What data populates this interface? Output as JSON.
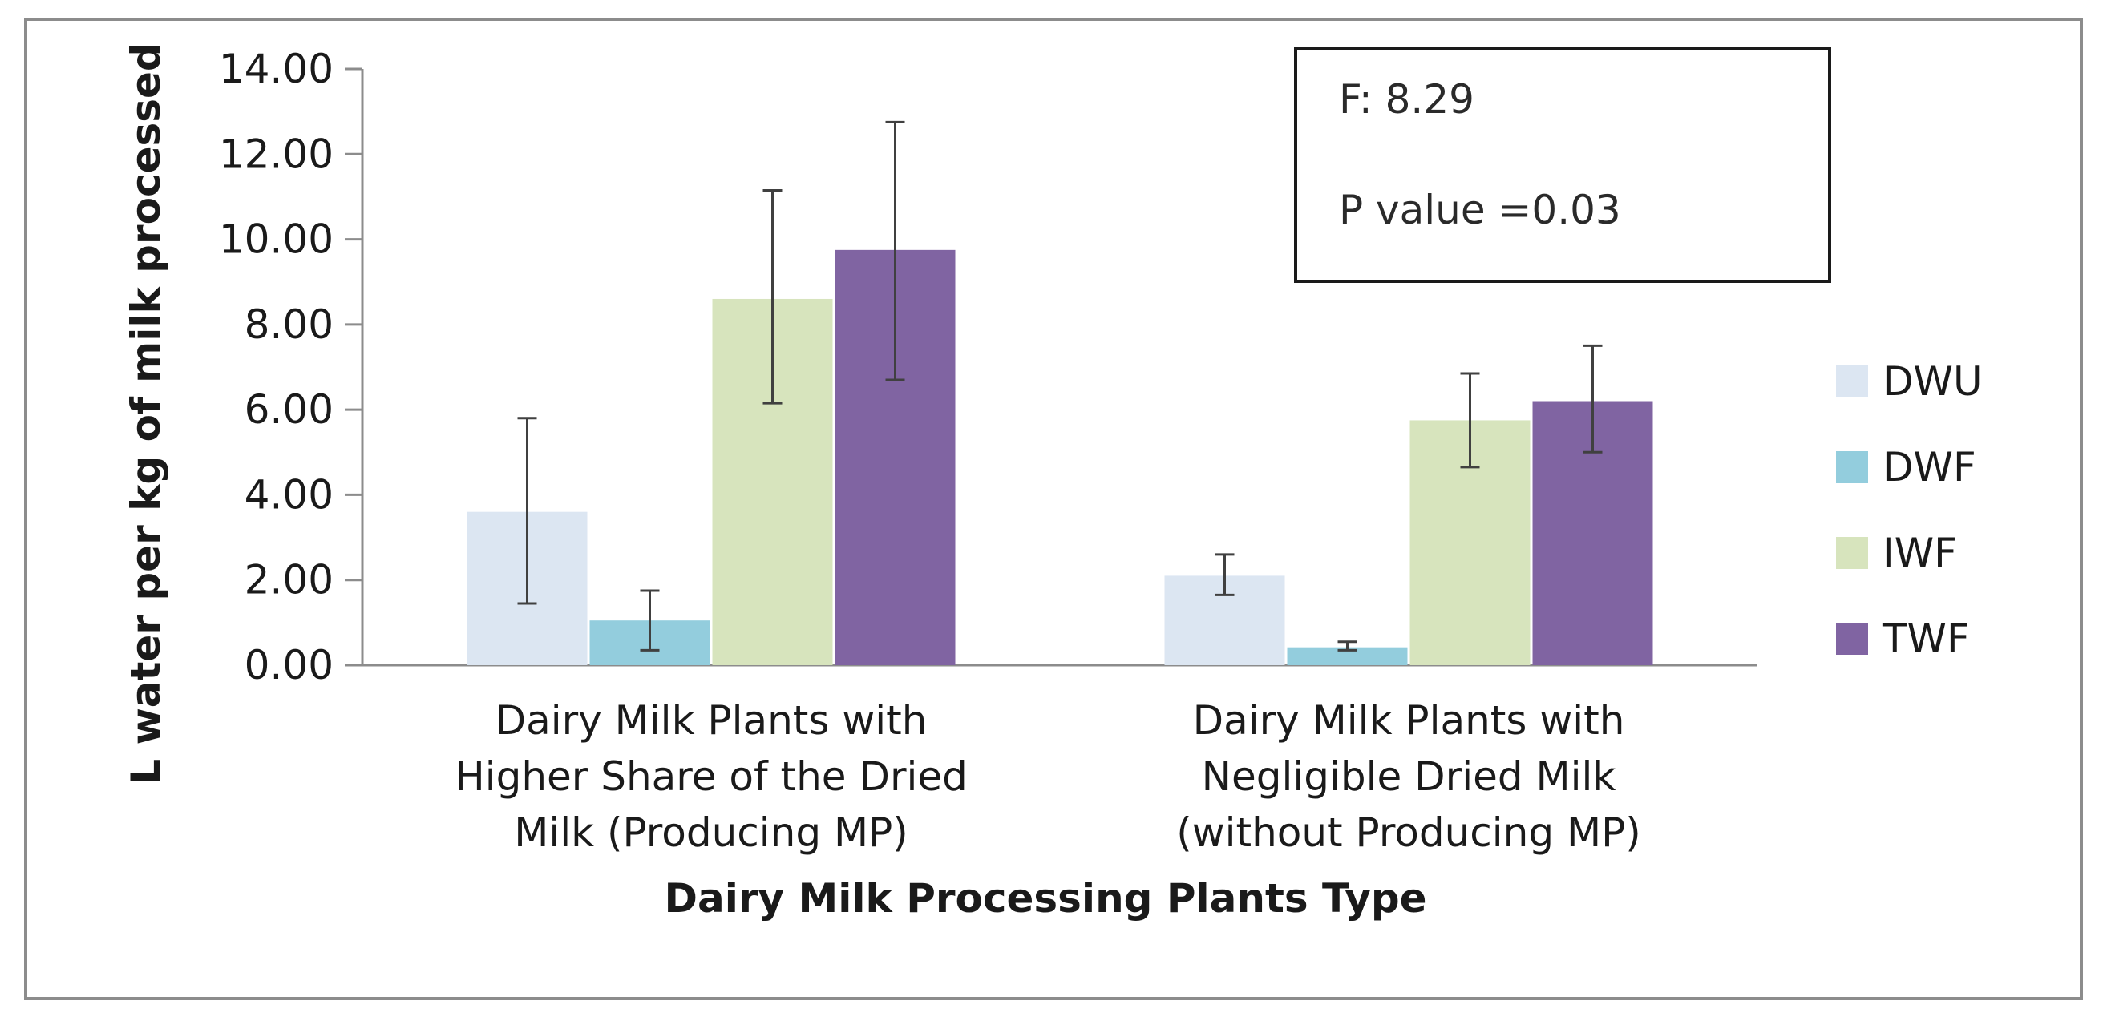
{
  "chart_data": {
    "type": "bar",
    "title": "",
    "xlabel": "Dairy Milk Processing Plants Type",
    "ylabel": "L water per kg of milk processed",
    "ylim": [
      0,
      14
    ],
    "y_ticks": [
      "0.00",
      "2.00",
      "4.00",
      "6.00",
      "8.00",
      "10.00",
      "12.00",
      "14.00"
    ],
    "categories": [
      [
        "Dairy Milk Plants with",
        "Higher Share of the Dried",
        "Milk (Producing MP)"
      ],
      [
        "Dairy Milk Plants with",
        "Negligible Dried Milk",
        "(without Producing MP)"
      ]
    ],
    "series": [
      {
        "name": "DWU",
        "color": "#dce6f2",
        "values": [
          3.6,
          2.1
        ],
        "err_low": [
          1.45,
          1.65
        ],
        "err_high": [
          5.8,
          2.6
        ]
      },
      {
        "name": "DWF",
        "color": "#93cddd",
        "values": [
          1.05,
          0.42
        ],
        "err_low": [
          0.35,
          0.35
        ],
        "err_high": [
          1.75,
          0.55
        ]
      },
      {
        "name": "IWF",
        "color": "#d7e4bd",
        "values": [
          8.6,
          5.75
        ],
        "err_low": [
          6.15,
          4.65
        ],
        "err_high": [
          11.15,
          6.85
        ]
      },
      {
        "name": "TWF",
        "color": "#8064a2",
        "values": [
          9.75,
          6.2
        ],
        "err_low": [
          6.7,
          5.0
        ],
        "err_high": [
          12.75,
          7.5
        ]
      }
    ],
    "legend_position": "right",
    "grid": false,
    "annotation": {
      "f_stat": "F: 8.29",
      "p_value": "P value =0.03"
    }
  }
}
